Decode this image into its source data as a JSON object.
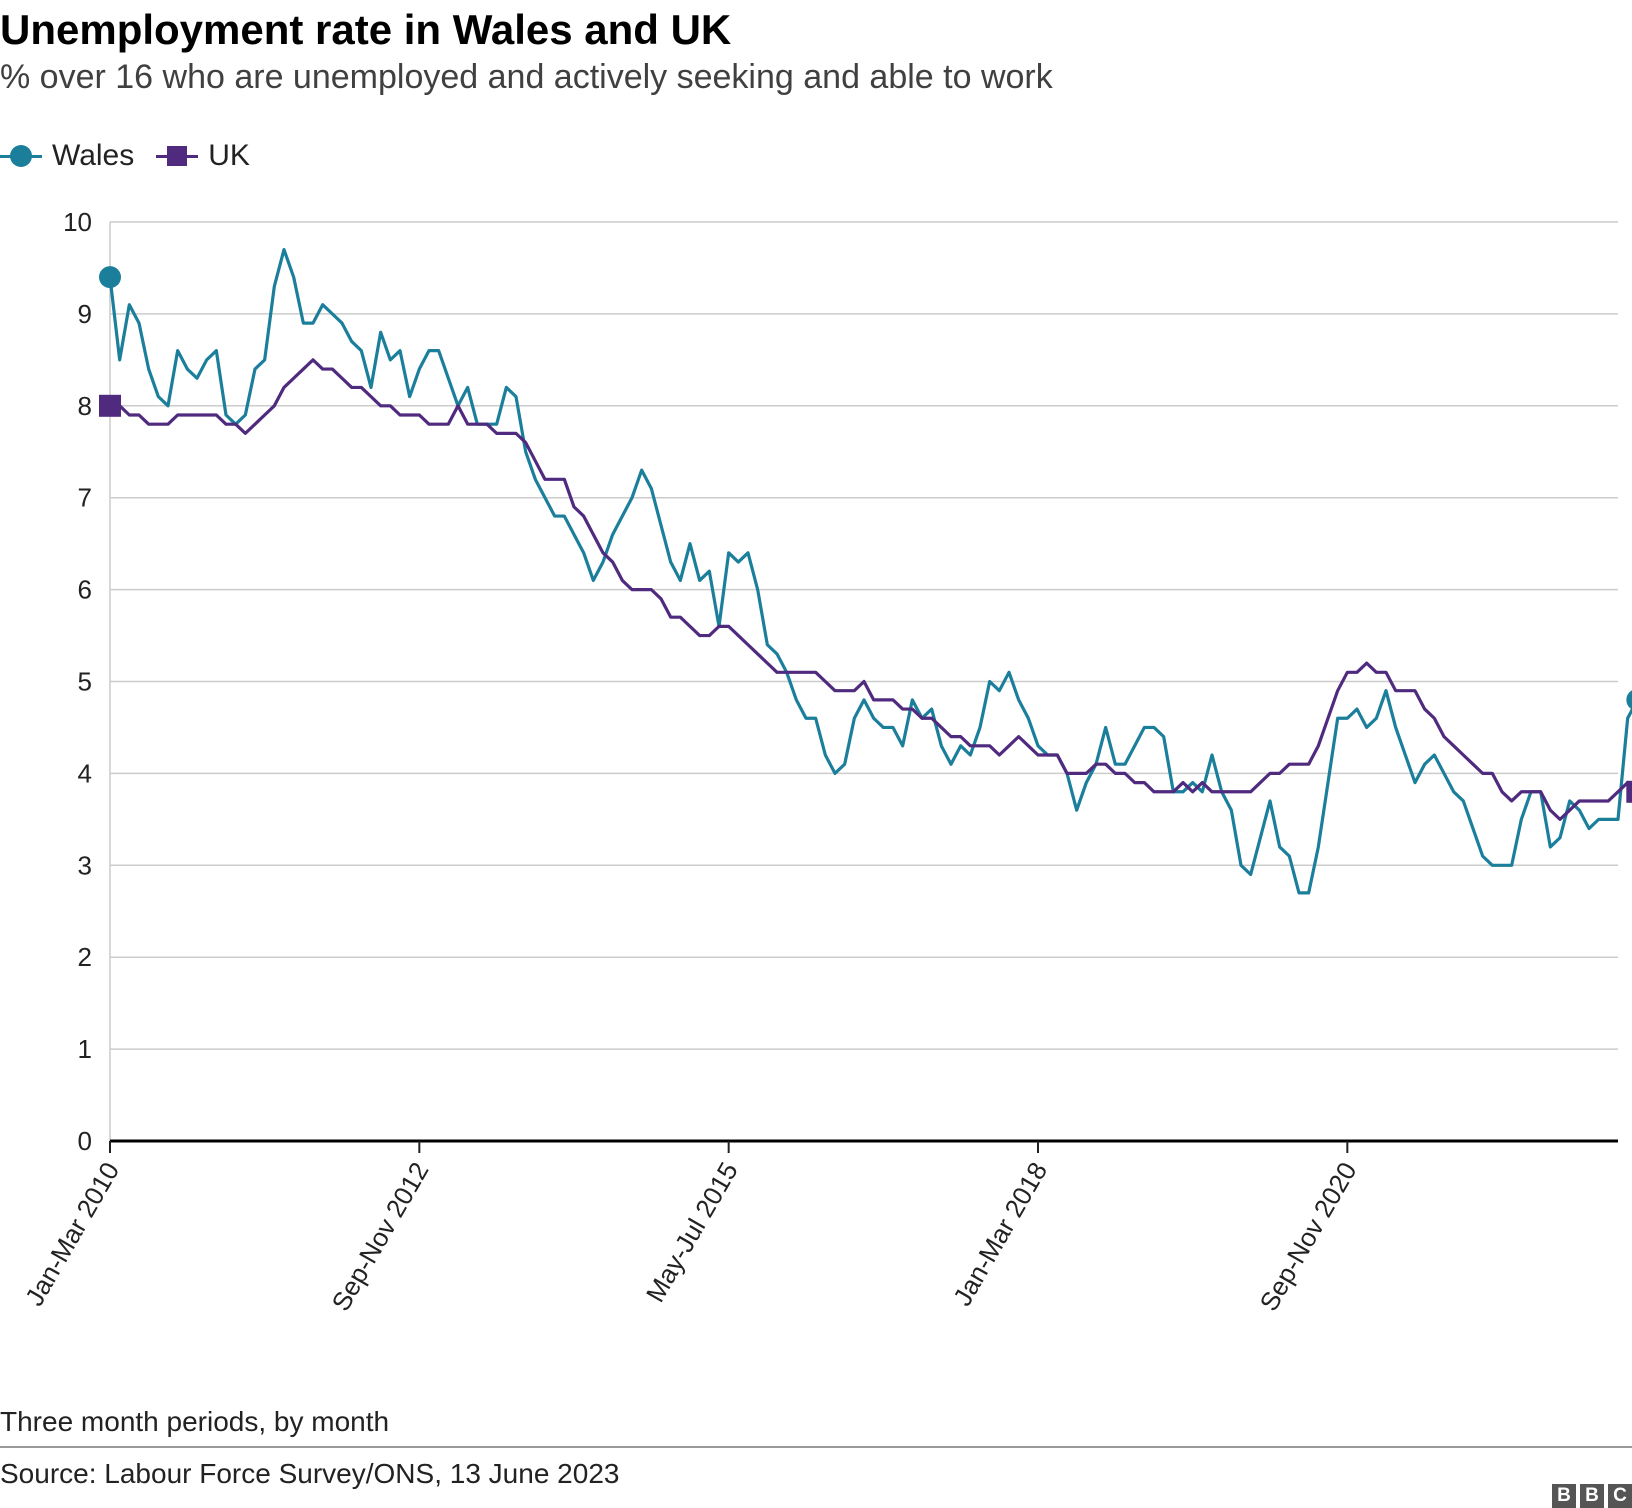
{
  "chart_data": {
    "type": "line",
    "title": "Unemployment rate in Wales and UK",
    "subtitle": "% over 16 who are unemployed and actively seeking and able to work",
    "xlabel": "Three month periods, by month",
    "ylabel": "",
    "ylim": [
      0,
      10
    ],
    "yticks": [
      "0",
      "1",
      "2",
      "3",
      "4",
      "5",
      "6",
      "7",
      "8",
      "9",
      "10"
    ],
    "xticks": [
      {
        "index": 0,
        "label": "Jan-Mar 2010"
      },
      {
        "index": 32,
        "label": "Sep-Nov 2012"
      },
      {
        "index": 64,
        "label": "May-Jul 2015"
      },
      {
        "index": 96,
        "label": "Jan-Mar 2018"
      },
      {
        "index": 128,
        "label": "Sep-Nov 2020"
      }
    ],
    "n_periods": 157,
    "series": [
      {
        "name": "Wales",
        "color": "#1b7f9c",
        "marker": "circle",
        "values": [
          9.4,
          8.5,
          9.1,
          8.9,
          8.4,
          8.1,
          8.0,
          8.6,
          8.4,
          8.3,
          8.5,
          8.6,
          7.9,
          7.8,
          7.9,
          8.4,
          8.5,
          9.3,
          9.7,
          9.4,
          8.9,
          8.9,
          9.1,
          9.0,
          8.9,
          8.7,
          8.6,
          8.2,
          8.8,
          8.5,
          8.6,
          8.1,
          8.4,
          8.6,
          8.6,
          8.3,
          8.0,
          8.2,
          7.8,
          7.8,
          7.8,
          8.2,
          8.1,
          7.5,
          7.2,
          7.0,
          6.8,
          6.8,
          6.6,
          6.4,
          6.1,
          6.3,
          6.6,
          6.8,
          7.0,
          7.3,
          7.1,
          6.7,
          6.3,
          6.1,
          6.5,
          6.1,
          6.2,
          5.6,
          6.4,
          6.3,
          6.4,
          6.0,
          5.4,
          5.3,
          5.1,
          4.8,
          4.6,
          4.6,
          4.2,
          4.0,
          4.1,
          4.6,
          4.8,
          4.6,
          4.5,
          4.5,
          4.3,
          4.8,
          4.6,
          4.7,
          4.3,
          4.1,
          4.3,
          4.2,
          4.5,
          5.0,
          4.9,
          5.1,
          4.8,
          4.6,
          4.3,
          4.2,
          4.2,
          4.0,
          3.6,
          3.9,
          4.1,
          4.5,
          4.1,
          4.1,
          4.3,
          4.5,
          4.5,
          4.4,
          3.8,
          3.8,
          3.9,
          3.8,
          4.2,
          3.8,
          3.6,
          3.0,
          2.9,
          3.3,
          3.7,
          3.2,
          3.1,
          2.7,
          2.7,
          3.2,
          3.9,
          4.6,
          4.6,
          4.7,
          4.5,
          4.6,
          4.9,
          4.5,
          4.2,
          3.9,
          4.1,
          4.2,
          4.0,
          3.8,
          3.7,
          3.4,
          3.1,
          3.0,
          3.0,
          3.0,
          3.5,
          3.8,
          3.8,
          3.2,
          3.3,
          3.7,
          3.6,
          3.4,
          3.5,
          3.5,
          3.5,
          4.6,
          4.8
        ]
      },
      {
        "name": "UK",
        "color": "#4f2a7e",
        "marker": "square",
        "values": [
          8.0,
          8.0,
          7.9,
          7.9,
          7.8,
          7.8,
          7.8,
          7.9,
          7.9,
          7.9,
          7.9,
          7.9,
          7.8,
          7.8,
          7.7,
          7.8,
          7.9,
          8.0,
          8.2,
          8.3,
          8.4,
          8.5,
          8.4,
          8.4,
          8.3,
          8.2,
          8.2,
          8.1,
          8.0,
          8.0,
          7.9,
          7.9,
          7.9,
          7.8,
          7.8,
          7.8,
          8.0,
          7.8,
          7.8,
          7.8,
          7.7,
          7.7,
          7.7,
          7.6,
          7.4,
          7.2,
          7.2,
          7.2,
          6.9,
          6.8,
          6.6,
          6.4,
          6.3,
          6.1,
          6.0,
          6.0,
          6.0,
          5.9,
          5.7,
          5.7,
          5.6,
          5.5,
          5.5,
          5.6,
          5.6,
          5.5,
          5.4,
          5.3,
          5.2,
          5.1,
          5.1,
          5.1,
          5.1,
          5.1,
          5.0,
          4.9,
          4.9,
          4.9,
          5.0,
          4.8,
          4.8,
          4.8,
          4.7,
          4.7,
          4.6,
          4.6,
          4.5,
          4.4,
          4.4,
          4.3,
          4.3,
          4.3,
          4.2,
          4.3,
          4.4,
          4.3,
          4.2,
          4.2,
          4.2,
          4.0,
          4.0,
          4.0,
          4.1,
          4.1,
          4.0,
          4.0,
          3.9,
          3.9,
          3.8,
          3.8,
          3.8,
          3.9,
          3.8,
          3.9,
          3.8,
          3.8,
          3.8,
          3.8,
          3.8,
          3.9,
          4.0,
          4.0,
          4.1,
          4.1,
          4.1,
          4.3,
          4.6,
          4.9,
          5.1,
          5.1,
          5.2,
          5.1,
          5.1,
          4.9,
          4.9,
          4.9,
          4.7,
          4.6,
          4.4,
          4.3,
          4.2,
          4.1,
          4.0,
          4.0,
          3.8,
          3.7,
          3.8,
          3.8,
          3.8,
          3.6,
          3.5,
          3.6,
          3.7,
          3.7,
          3.7,
          3.7,
          3.8,
          3.9,
          3.8
        ]
      }
    ],
    "legend": "top-left",
    "grid": true
  },
  "footer": {
    "source": "Source: Labour Force Survey/ONS, 13 June 2023",
    "logo_letters": [
      "B",
      "B",
      "C"
    ]
  }
}
